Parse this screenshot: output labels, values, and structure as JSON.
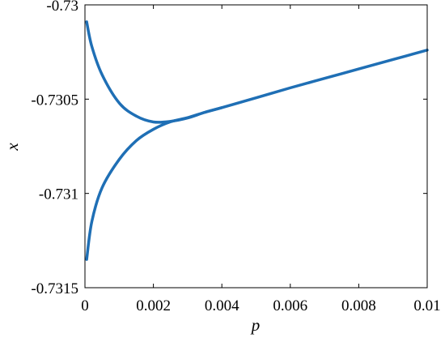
{
  "chart_data": {
    "type": "line",
    "title": "",
    "xlabel": "p",
    "ylabel": "x",
    "xlim": [
      0,
      0.01
    ],
    "ylim": [
      -0.7315,
      -0.73
    ],
    "grid": false,
    "legend": "none",
    "x_ticks": [
      0,
      0.002,
      0.004,
      0.006,
      0.008,
      0.01
    ],
    "x_tick_labels": [
      "0",
      "0.002",
      "0.004",
      "0.006",
      "0.008",
      "0.01"
    ],
    "y_ticks": [
      -0.73,
      -0.7305,
      -0.731,
      -0.7315
    ],
    "y_tick_labels": [
      "-0.73",
      "-0.7305",
      "-0.731",
      "-0.7315"
    ],
    "colors": {
      "series": "#1f6fb5",
      "axes": "#000000",
      "background": "#ffffff"
    },
    "series": [
      {
        "x": [
          5e-05,
          0.0002,
          0.0005,
          0.001,
          0.0015,
          0.002,
          0.0025,
          0.003,
          0.0035,
          0.004,
          0.005,
          0.006,
          0.007,
          0.008,
          0.009,
          0.01
        ],
        "y": [
          -0.73009,
          -0.73022,
          -0.73037,
          -0.73052,
          -0.73059,
          -0.730621,
          -0.730618,
          -0.7306,
          -0.73057,
          -0.730545,
          -0.730493,
          -0.73044,
          -0.73039,
          -0.73034,
          -0.73029,
          -0.73024
        ]
      },
      {
        "x": [
          5e-05,
          0.0002,
          0.0005,
          0.001,
          0.0015,
          0.002,
          0.0025,
          0.003,
          0.0035,
          0.004
        ],
        "y": [
          -0.73135,
          -0.73115,
          -0.73097,
          -0.73082,
          -0.73072,
          -0.73066,
          -0.73062,
          -0.730598,
          -0.73057,
          -0.730545
        ]
      }
    ]
  }
}
